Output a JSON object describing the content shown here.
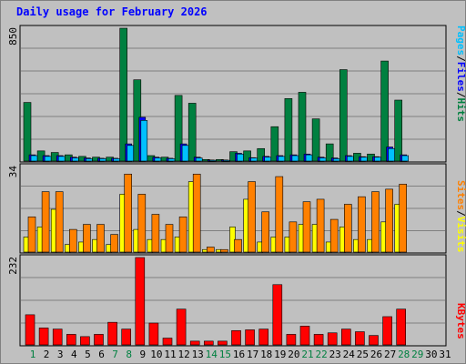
{
  "title": "Daily usage for February 2026",
  "colors": {
    "hits": "#008040",
    "files": "#0000ff",
    "pages": "#00c0ff",
    "visits": "#ffff00",
    "sites": "#ff8000",
    "kbytes": "#ff0000",
    "weekend_label": "#008040",
    "weekday_label": "#000000",
    "panel_bg": "#c0c0c0",
    "gridline": "#808080"
  },
  "chart_data": [
    {
      "type": "bar",
      "panel": "hits-files-pages",
      "ymax_label": "850",
      "ylim": [
        0,
        850
      ],
      "legend": {
        "pages": "Pages",
        "sep1": "/",
        "files": "Files",
        "sep2": "/",
        "hits": "Hits"
      },
      "series": [
        {
          "name": "Hits",
          "values": [
            375,
            65,
            55,
            40,
            30,
            25,
            25,
            850,
            520,
            35,
            25,
            420,
            370,
            10,
            10,
            60,
            65,
            80,
            220,
            400,
            440,
            270,
            110,
            585,
            50,
            45,
            640,
            390
          ]
        },
        {
          "name": "Files",
          "values": [
            40,
            35,
            35,
            25,
            20,
            18,
            18,
            110,
            280,
            25,
            18,
            110,
            25,
            7,
            7,
            50,
            22,
            30,
            35,
            40,
            45,
            25,
            20,
            35,
            28,
            28,
            90,
            40
          ]
        },
        {
          "name": "Pages",
          "values": [
            35,
            30,
            30,
            20,
            15,
            15,
            15,
            100,
            260,
            20,
            15,
            100,
            20,
            5,
            5,
            45,
            20,
            25,
            30,
            35,
            40,
            20,
            15,
            30,
            25,
            25,
            80,
            35
          ]
        }
      ]
    },
    {
      "type": "bar",
      "panel": "visits-sites",
      "ymax_label": "34",
      "ylim": [
        0,
        34
      ],
      "legend": {
        "sites": "Sites",
        "sep": "/",
        "visits": "Visits"
      },
      "series": [
        {
          "name": "Visits",
          "values": [
            6,
            10,
            17,
            3,
            4,
            5,
            3,
            23,
            9,
            5,
            5,
            6,
            28,
            1,
            1,
            10,
            21,
            4,
            6,
            6,
            11,
            11,
            4,
            10,
            5,
            5,
            12,
            19
          ]
        },
        {
          "name": "Sites",
          "values": [
            14,
            24,
            24,
            9,
            11,
            11,
            7,
            31,
            23,
            15,
            11,
            14,
            31,
            2,
            1,
            5,
            28,
            16,
            30,
            12,
            20,
            21,
            13,
            19,
            22,
            24,
            25,
            27
          ]
        }
      ]
    },
    {
      "type": "bar",
      "panel": "kbytes",
      "ymax_label": "232",
      "ylim": [
        0,
        232
      ],
      "legend": {
        "kbytes": "KBytes"
      },
      "series": [
        {
          "name": "KBytes",
          "values": [
            80,
            45,
            42,
            28,
            22,
            28,
            60,
            42,
            232,
            58,
            18,
            95,
            10,
            10,
            10,
            38,
            40,
            42,
            160,
            28,
            50,
            28,
            32,
            42,
            35,
            25,
            75,
            95
          ]
        }
      ]
    }
  ],
  "x_labels": [
    "1",
    "2",
    "3",
    "4",
    "5",
    "6",
    "7",
    "8",
    "9",
    "10",
    "11",
    "12",
    "13",
    "14",
    "15",
    "16",
    "17",
    "18",
    "19",
    "20",
    "21",
    "22",
    "23",
    "24",
    "25",
    "26",
    "27",
    "28",
    "29",
    "30",
    "31"
  ],
  "weekend_days": [
    1,
    7,
    8,
    14,
    15,
    21,
    22,
    28,
    29
  ]
}
